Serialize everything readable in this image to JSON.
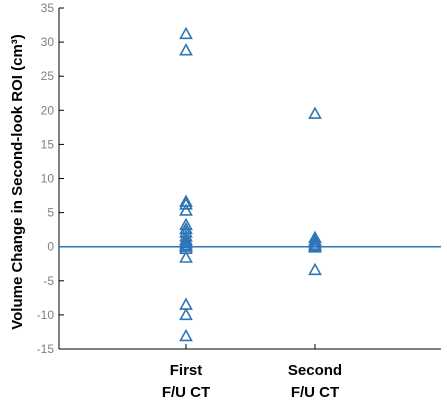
{
  "chart_data": {
    "type": "scatter",
    "title": "",
    "xlabel": "",
    "ylabel": "Volume Change in Second-look ROI (cm³)",
    "ylim": [
      -15,
      35
    ],
    "yticks": [
      -15,
      -10,
      -5,
      0,
      5,
      10,
      15,
      20,
      25,
      30,
      35
    ],
    "categories": [
      {
        "lines": [
          "First",
          "F/U CT"
        ]
      },
      {
        "lines": [
          "Second",
          "F/U CT"
        ]
      }
    ],
    "marker": "triangle-open",
    "grid": false,
    "reference_line_y": 0,
    "series": [
      {
        "category_index": 0,
        "values": [
          31.2,
          28.8,
          6.6,
          6.2,
          5.3,
          3.2,
          2.6,
          2.1,
          1.5,
          1.0,
          0.7,
          0.5,
          0.2,
          0.0,
          -0.3,
          -1.6,
          -8.5,
          -10.0,
          -13.1
        ]
      },
      {
        "category_index": 1,
        "values": [
          19.5,
          1.3,
          0.9,
          0.6,
          0.3,
          0.1,
          -0.1,
          -3.4
        ]
      }
    ],
    "colors": {
      "marker": "#2e75b6",
      "zero_line": "#2e75b6",
      "axis": "#000000",
      "tick_label": "#7f7f7f"
    }
  }
}
